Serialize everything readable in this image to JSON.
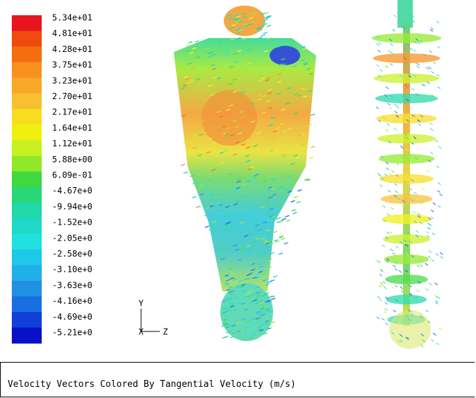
{
  "legend": {
    "labels": [
      "5.34e+01",
      "4.81e+01",
      "4.28e+01",
      "3.75e+01",
      "3.23e+01",
      "2.70e+01",
      "2.17e+01",
      "1.64e+01",
      "1.12e+01",
      "5.88e+00",
      "6.09e-01",
      "-4.67e+0",
      "-9.94e+0",
      "-1.52e+0",
      "-2.05e+0",
      "-2.58e+0",
      "-3.10e+0",
      "-3.63e+0",
      "-4.16e+0",
      "-4.69e+0",
      "-5.21e+0"
    ],
    "colors": [
      "#e8141e",
      "#f04a0e",
      "#f46e10",
      "#f89020",
      "#f8a828",
      "#f8c030",
      "#f8dc20",
      "#f0f010",
      "#c8f020",
      "#90e828",
      "#40d840",
      "#28d878",
      "#20d8a8",
      "#20d8c8",
      "#20e0e0",
      "#20c8e8",
      "#20b0e8",
      "#2090e0",
      "#1870e0",
      "#1040d8",
      "#0810c8"
    ]
  },
  "axes": {
    "y": "Y",
    "x": "X",
    "z": "Z"
  },
  "caption": "Velocity Vectors Colored By Tangential Velocity (m/s)"
}
